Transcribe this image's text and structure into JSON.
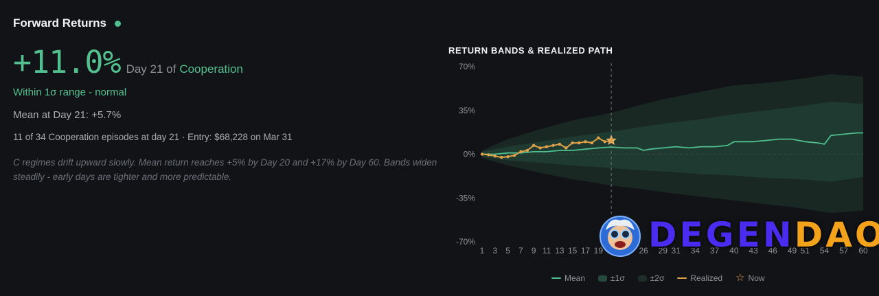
{
  "header": {
    "title": "Forward Returns",
    "status_color": "#4fbf8f"
  },
  "summary": {
    "return_value": "+11.0%",
    "day_prefix": "Day 21 of",
    "regime": "Cooperation",
    "range_status": "Within 1σ range - normal",
    "mean_text": "Mean at Day 21: +5.7%",
    "episodes_text": "11 of 34 Cooperation episodes at day 21 · Entry: $68,228 on Mar 31",
    "description": "C regimes drift upward slowly. Mean return reaches +5% by Day 20 and +17% by Day 60. Bands widen steadily - early days are tighter and more predictable."
  },
  "logo": {
    "part1": "DEGEN",
    "part2": "DAO!"
  },
  "colors": {
    "mean": "#4fbf8f",
    "realized": "#e1a24a",
    "band1": "#1f3b31",
    "band2": "#1a2824",
    "accent": "#52c08f"
  },
  "chart_data": {
    "type": "area",
    "title": "RETURN BANDS & REALIZED PATH",
    "y_ticks": [
      70,
      35,
      0,
      -35,
      -70
    ],
    "y_tick_labels": [
      "70%",
      "35%",
      "0%",
      "-35%",
      "-70%"
    ],
    "ylim": [
      -70,
      70
    ],
    "xlim": [
      1,
      60
    ],
    "x_ticks": [
      1,
      3,
      5,
      7,
      9,
      11,
      13,
      15,
      17,
      19,
      26,
      29,
      31,
      34,
      37,
      40,
      43,
      46,
      49,
      51,
      54,
      57,
      60
    ],
    "now_day": 21,
    "now_value": 11.0,
    "grid": false,
    "legend_position": "bottom",
    "legend": [
      {
        "label": "Mean",
        "kind": "line",
        "color": "#4fbf8f"
      },
      {
        "label": "±1σ",
        "kind": "band",
        "color": "#254a3c"
      },
      {
        "label": "±2σ",
        "kind": "band",
        "color": "#1f2d28"
      },
      {
        "label": "Realized",
        "kind": "line",
        "color": "#e1a24a"
      },
      {
        "label": "Now",
        "kind": "star",
        "color": "#e1a24a"
      }
    ],
    "series": [
      {
        "name": "Mean",
        "x": [
          1,
          3,
          5,
          7,
          9,
          11,
          13,
          15,
          17,
          19,
          21,
          23,
          25,
          26,
          27,
          29,
          31,
          33,
          35,
          37,
          39,
          40,
          41,
          43,
          45,
          47,
          49,
          51,
          53,
          54,
          55,
          57,
          59,
          60
        ],
        "values": [
          0,
          0,
          1,
          1,
          2,
          2,
          3,
          3,
          4,
          5,
          5.7,
          5,
          5,
          3,
          4,
          5,
          6,
          5,
          6,
          6,
          7,
          10,
          10,
          10,
          11,
          12,
          12,
          10,
          9,
          8,
          15,
          16,
          17,
          17
        ]
      },
      {
        "name": "Realized",
        "x": [
          1,
          2,
          3,
          4,
          5,
          6,
          7,
          8,
          9,
          10,
          11,
          12,
          13,
          14,
          15,
          16,
          17,
          18,
          19,
          20,
          21
        ],
        "values": [
          0,
          -0.5,
          -1.5,
          -2.5,
          -2,
          -1,
          2,
          3,
          7,
          5,
          6,
          7,
          8,
          5,
          9,
          9,
          10,
          9,
          13,
          10,
          11
        ]
      },
      {
        "name": "±1σ",
        "x": [
          1,
          5,
          10,
          15,
          21,
          26,
          30,
          35,
          40,
          45,
          50,
          55,
          60
        ],
        "upper": [
          2,
          6,
          10,
          14,
          18,
          22,
          25,
          28,
          32,
          35,
          38,
          42,
          40
        ],
        "lower": [
          -2,
          -5,
          -7,
          -9,
          -11,
          -13,
          -14,
          -16,
          -17,
          -19,
          -20,
          -22,
          -18
        ]
      },
      {
        "name": "±2σ",
        "x": [
          1,
          5,
          10,
          15,
          21,
          26,
          30,
          35,
          40,
          45,
          50,
          55,
          60
        ],
        "upper": [
          3,
          12,
          20,
          27,
          33,
          40,
          45,
          50,
          55,
          57,
          60,
          64,
          62
        ],
        "lower": [
          -3,
          -9,
          -15,
          -20,
          -25,
          -28,
          -31,
          -34,
          -37,
          -40,
          -43,
          -47,
          -45
        ]
      }
    ]
  }
}
